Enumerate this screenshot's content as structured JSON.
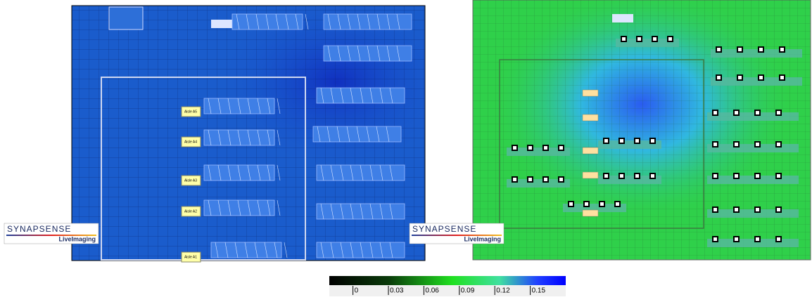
{
  "left_map": {
    "aisles": [
      "Aisle A5",
      "Aisle A4",
      "Aisle A3",
      "Aisle A2",
      "Aisle A1"
    ]
  },
  "logos": [
    {
      "brand": "SYNAPSENSE",
      "product": "LiveImaging"
    },
    {
      "brand": "SYNAPSENSE",
      "product": "LiveImaging"
    }
  ],
  "colorbar": {
    "range": [
      -0.02,
      0.18
    ],
    "ticks": [
      0,
      0.03,
      0.06,
      0.09,
      0.12,
      0.15
    ]
  }
}
